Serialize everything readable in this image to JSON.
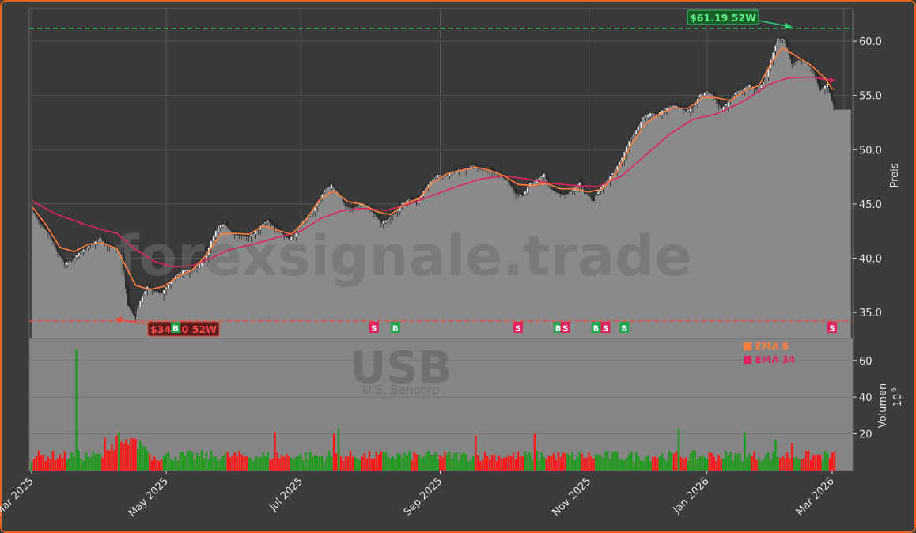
{
  "chart_data": {
    "type": "candlestick",
    "symbol": "USB",
    "company": "U.S. Bancorp",
    "watermark": "forexsignale.trade",
    "price_axis_label": "Preis",
    "volume_axis_label": "Volumen",
    "volume_scale_label": "10",
    "volume_scale_exp": "6",
    "x_tick_labels": [
      "Mar 2025",
      "May 2025",
      "Jul 2025",
      "Sep 2025",
      "Nov 2025",
      "Jan 2026",
      "Mar 2026"
    ],
    "y_ticks": [
      35.0,
      40.0,
      45.0,
      50.0,
      55.0,
      60.0
    ],
    "y_tick_labels": [
      "35.0",
      "40.0",
      "45.0",
      "50.0",
      "55.0",
      "60.0"
    ],
    "ylim": [
      32.6,
      63.0
    ],
    "volume_ticks": [
      20,
      40,
      60
    ],
    "volume_tick_labels": [
      "20",
      "40",
      "60"
    ],
    "volume_ylim": [
      0,
      72
    ],
    "high_52w": {
      "value": 61.19,
      "label": "$61.19 52W",
      "color": "#2ecc71"
    },
    "low_52w": {
      "value": 34.2,
      "label": "$34.20 52W",
      "color": "#e74c3c"
    },
    "legend": [
      {
        "label": "EMA 8",
        "color": "#ff7f3f"
      },
      {
        "label": "EMA 34",
        "color": "#e0245e"
      }
    ],
    "ema_colors": {
      "ema8": "#ff7f3f",
      "ema34": "#e0245e"
    },
    "up_color": "#1f9a1f",
    "down_color": "#ff1a1a",
    "price_path": [
      [
        0,
        44.6
      ],
      [
        4,
        43.2
      ],
      [
        8,
        42.1
      ],
      [
        11,
        40.6
      ],
      [
        14,
        39.6
      ],
      [
        17,
        39.8
      ],
      [
        20,
        40.5
      ],
      [
        23,
        41.0
      ],
      [
        26,
        41.4
      ],
      [
        29,
        41.9
      ],
      [
        32,
        41.2
      ],
      [
        35,
        40.9
      ],
      [
        38,
        40.5
      ],
      [
        41,
        35.6
      ],
      [
        44,
        34.6
      ],
      [
        46,
        36.1
      ],
      [
        49,
        37.4
      ],
      [
        52,
        37.0
      ],
      [
        55,
        36.8
      ],
      [
        58,
        37.6
      ],
      [
        61,
        38.4
      ],
      [
        64,
        38.9
      ],
      [
        67,
        38.9
      ],
      [
        70,
        39.3
      ],
      [
        73,
        39.8
      ],
      [
        76,
        41.6
      ],
      [
        79,
        43.0
      ],
      [
        82,
        43.2
      ],
      [
        85,
        42.3
      ],
      [
        88,
        42.1
      ],
      [
        91,
        42.0
      ],
      [
        94,
        42.3
      ],
      [
        97,
        43.0
      ],
      [
        100,
        43.5
      ],
      [
        103,
        42.9
      ],
      [
        106,
        42.3
      ],
      [
        109,
        41.8
      ],
      [
        112,
        42.3
      ],
      [
        115,
        43.5
      ],
      [
        118,
        44.0
      ],
      [
        121,
        45.0
      ],
      [
        124,
        46.3
      ],
      [
        127,
        46.8
      ],
      [
        130,
        46.1
      ],
      [
        133,
        44.8
      ],
      [
        136,
        44.6
      ],
      [
        139,
        45.0
      ],
      [
        142,
        44.9
      ],
      [
        145,
        44.2
      ],
      [
        148,
        43.3
      ],
      [
        151,
        43.6
      ],
      [
        154,
        44.2
      ],
      [
        157,
        45.1
      ],
      [
        160,
        45.5
      ],
      [
        163,
        45.1
      ],
      [
        166,
        46.2
      ],
      [
        169,
        47.1
      ],
      [
        172,
        47.7
      ],
      [
        175,
        47.6
      ],
      [
        178,
        48.0
      ],
      [
        181,
        48.2
      ],
      [
        184,
        48.3
      ],
      [
        187,
        48.6
      ],
      [
        190,
        48.2
      ],
      [
        193,
        48.1
      ],
      [
        196,
        47.9
      ],
      [
        199,
        47.6
      ],
      [
        202,
        47.1
      ],
      [
        205,
        46.0
      ],
      [
        208,
        45.8
      ],
      [
        211,
        46.9
      ],
      [
        214,
        47.3
      ],
      [
        217,
        47.8
      ],
      [
        220,
        46.4
      ],
      [
        223,
        46.0
      ],
      [
        226,
        45.8
      ],
      [
        229,
        46.3
      ],
      [
        232,
        47.0
      ],
      [
        235,
        46.0
      ],
      [
        238,
        45.3
      ],
      [
        241,
        46.6
      ],
      [
        244,
        47.3
      ],
      [
        247,
        48.1
      ],
      [
        250,
        49.3
      ],
      [
        253,
        50.8
      ],
      [
        256,
        51.8
      ],
      [
        259,
        53.0
      ],
      [
        262,
        53.4
      ],
      [
        265,
        53.3
      ],
      [
        268,
        53.8
      ],
      [
        271,
        54.1
      ],
      [
        274,
        54.0
      ],
      [
        277,
        53.6
      ],
      [
        280,
        53.9
      ],
      [
        283,
        55.1
      ],
      [
        286,
        55.4
      ],
      [
        289,
        55.0
      ],
      [
        292,
        53.8
      ],
      [
        295,
        54.4
      ],
      [
        298,
        55.3
      ],
      [
        301,
        55.6
      ],
      [
        304,
        56.0
      ],
      [
        307,
        55.6
      ],
      [
        310,
        56.2
      ],
      [
        313,
        58.3
      ],
      [
        316,
        60.3
      ],
      [
        319,
        60.2
      ],
      [
        322,
        57.9
      ],
      [
        325,
        58.3
      ],
      [
        328,
        58.1
      ],
      [
        331,
        57.4
      ],
      [
        334,
        55.5
      ],
      [
        337,
        56.1
      ],
      [
        340,
        53.7
      ]
    ],
    "ema8_path": [
      [
        0,
        44.8
      ],
      [
        6,
        43.1
      ],
      [
        12,
        41.0
      ],
      [
        18,
        40.6
      ],
      [
        24,
        41.3
      ],
      [
        30,
        41.4
      ],
      [
        36,
        40.9
      ],
      [
        40,
        39.2
      ],
      [
        44,
        37.5
      ],
      [
        50,
        37.1
      ],
      [
        56,
        37.4
      ],
      [
        62,
        38.3
      ],
      [
        68,
        38.9
      ],
      [
        74,
        40.3
      ],
      [
        80,
        42.2
      ],
      [
        86,
        42.3
      ],
      [
        92,
        42.2
      ],
      [
        98,
        43.0
      ],
      [
        104,
        42.6
      ],
      [
        110,
        42.2
      ],
      [
        116,
        43.5
      ],
      [
        122,
        45.4
      ],
      [
        128,
        46.2
      ],
      [
        134,
        45.2
      ],
      [
        140,
        45.0
      ],
      [
        146,
        44.3
      ],
      [
        152,
        44.0
      ],
      [
        158,
        45.0
      ],
      [
        164,
        45.5
      ],
      [
        170,
        47.0
      ],
      [
        176,
        47.8
      ],
      [
        182,
        48.1
      ],
      [
        188,
        48.4
      ],
      [
        194,
        48.1
      ],
      [
        200,
        47.6
      ],
      [
        206,
        46.8
      ],
      [
        212,
        46.7
      ],
      [
        218,
        46.9
      ],
      [
        224,
        46.4
      ],
      [
        230,
        46.4
      ],
      [
        236,
        46.1
      ],
      [
        242,
        46.4
      ],
      [
        248,
        48.0
      ],
      [
        254,
        50.5
      ],
      [
        260,
        52.4
      ],
      [
        266,
        53.3
      ],
      [
        272,
        53.9
      ],
      [
        278,
        53.8
      ],
      [
        284,
        54.8
      ],
      [
        290,
        54.8
      ],
      [
        296,
        54.5
      ],
      [
        302,
        55.5
      ],
      [
        308,
        55.9
      ],
      [
        314,
        58.3
      ],
      [
        318,
        59.4
      ],
      [
        324,
        58.6
      ],
      [
        330,
        57.8
      ],
      [
        336,
        56.6
      ],
      [
        339,
        55.6
      ]
    ],
    "ema34_path": [
      [
        0,
        45.3
      ],
      [
        10,
        44.1
      ],
      [
        20,
        43.3
      ],
      [
        30,
        42.6
      ],
      [
        36,
        42.3
      ],
      [
        44,
        40.8
      ],
      [
        52,
        39.7
      ],
      [
        60,
        39.2
      ],
      [
        68,
        39.3
      ],
      [
        76,
        40.0
      ],
      [
        84,
        40.8
      ],
      [
        94,
        41.3
      ],
      [
        104,
        41.9
      ],
      [
        114,
        42.5
      ],
      [
        122,
        43.6
      ],
      [
        130,
        44.3
      ],
      [
        140,
        44.6
      ],
      [
        150,
        44.4
      ],
      [
        160,
        45.0
      ],
      [
        170,
        45.8
      ],
      [
        180,
        46.6
      ],
      [
        190,
        47.3
      ],
      [
        200,
        47.6
      ],
      [
        210,
        47.3
      ],
      [
        220,
        46.9
      ],
      [
        230,
        46.7
      ],
      [
        240,
        46.6
      ],
      [
        250,
        47.6
      ],
      [
        260,
        49.5
      ],
      [
        270,
        51.4
      ],
      [
        280,
        52.8
      ],
      [
        290,
        53.3
      ],
      [
        300,
        54.3
      ],
      [
        306,
        55.1
      ],
      [
        312,
        56.0
      ],
      [
        320,
        56.6
      ],
      [
        330,
        56.7
      ],
      [
        339,
        56.4
      ]
    ],
    "signals": [
      {
        "i": 61,
        "label": "B"
      },
      {
        "i": 145,
        "label": "S"
      },
      {
        "i": 154,
        "label": "B"
      },
      {
        "i": 206,
        "label": "S"
      },
      {
        "i": 223,
        "label": "B"
      },
      {
        "i": 226,
        "label": "S"
      },
      {
        "i": 239,
        "label": "B"
      },
      {
        "i": 243,
        "label": "S"
      },
      {
        "i": 251,
        "label": "B"
      },
      {
        "i": 339,
        "label": "S"
      }
    ],
    "volume_spikes": [
      {
        "i": 19,
        "v": 66,
        "color": "up"
      },
      {
        "i": 37,
        "v": 21,
        "color": "up"
      },
      {
        "i": 103,
        "v": 21,
        "color": "down"
      },
      {
        "i": 128,
        "v": 20,
        "color": "down"
      },
      {
        "i": 130,
        "v": 23,
        "color": "up"
      },
      {
        "i": 188,
        "v": 19,
        "color": "down"
      },
      {
        "i": 213,
        "v": 20,
        "color": "down"
      },
      {
        "i": 274,
        "v": 23,
        "color": "up"
      },
      {
        "i": 302,
        "v": 21,
        "color": "up"
      },
      {
        "i": 315,
        "v": 17,
        "color": "up"
      },
      {
        "i": 322,
        "v": 15,
        "color": "down"
      }
    ]
  }
}
